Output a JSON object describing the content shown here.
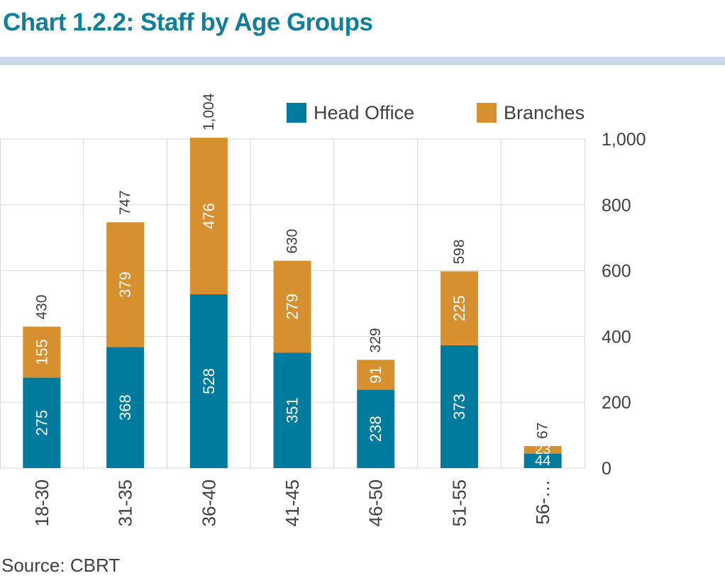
{
  "title": "Chart 1.2.2: Staff by Age Groups",
  "source": "Source: CBRT",
  "colors": {
    "head_office": "#007b9e",
    "branches": "#d6902f",
    "grid": "#d9d9d9",
    "title": "#0f7f9c"
  },
  "chart_data": {
    "type": "bar",
    "stacked": true,
    "categories": [
      "18-30",
      "31-35",
      "36-40",
      "41-45",
      "46-50",
      "51-55",
      "56-…"
    ],
    "series": [
      {
        "name": "Head Office",
        "values": [
          275,
          368,
          528,
          351,
          238,
          373,
          44
        ]
      },
      {
        "name": "Branches",
        "values": [
          155,
          379,
          476,
          279,
          91,
          225,
          23
        ]
      }
    ],
    "totals": [
      430,
      747,
      "1,004",
      630,
      329,
      598,
      67
    ],
    "y_ticks": [
      "0",
      "200",
      "400",
      "600",
      "800",
      "1,000"
    ],
    "ylim": [
      0,
      1000
    ],
    "y_axis_side": "right",
    "grid": true,
    "legend_position": "top-right"
  }
}
